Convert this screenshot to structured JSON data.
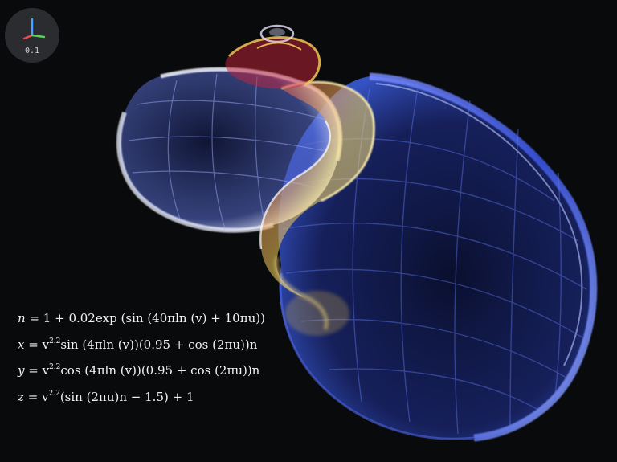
{
  "viewer": {
    "axis_widget": {
      "icon": "xyz-axes-icon",
      "scale_label": "0.1"
    }
  },
  "equations": {
    "n": {
      "lhs": "n",
      "rhs": "= 1 + 0.02exp (sin (40πln (v) + 10πu))"
    },
    "x": {
      "lhs": "x",
      "rhs_pre": "= v",
      "exp": "2.2",
      "rhs_post": "sin (4πln (v))(0.95 + cos (2πu))n"
    },
    "y": {
      "lhs": "y",
      "rhs_pre": "= v",
      "exp": "2.2",
      "rhs_post": "cos (4πln (v))(0.95 + cos (2πu))n"
    },
    "z": {
      "lhs": "z",
      "rhs_pre": "= v",
      "exp": "2.2",
      "rhs_post": "(sin (2πu)n − 1.5) + 1"
    }
  },
  "colors": {
    "background": "#090a0c",
    "shell_blue": "#3e5ad8",
    "shell_white": "#e8ecff",
    "shell_yellow": "#f1d45a",
    "shell_red": "#d8283e"
  }
}
